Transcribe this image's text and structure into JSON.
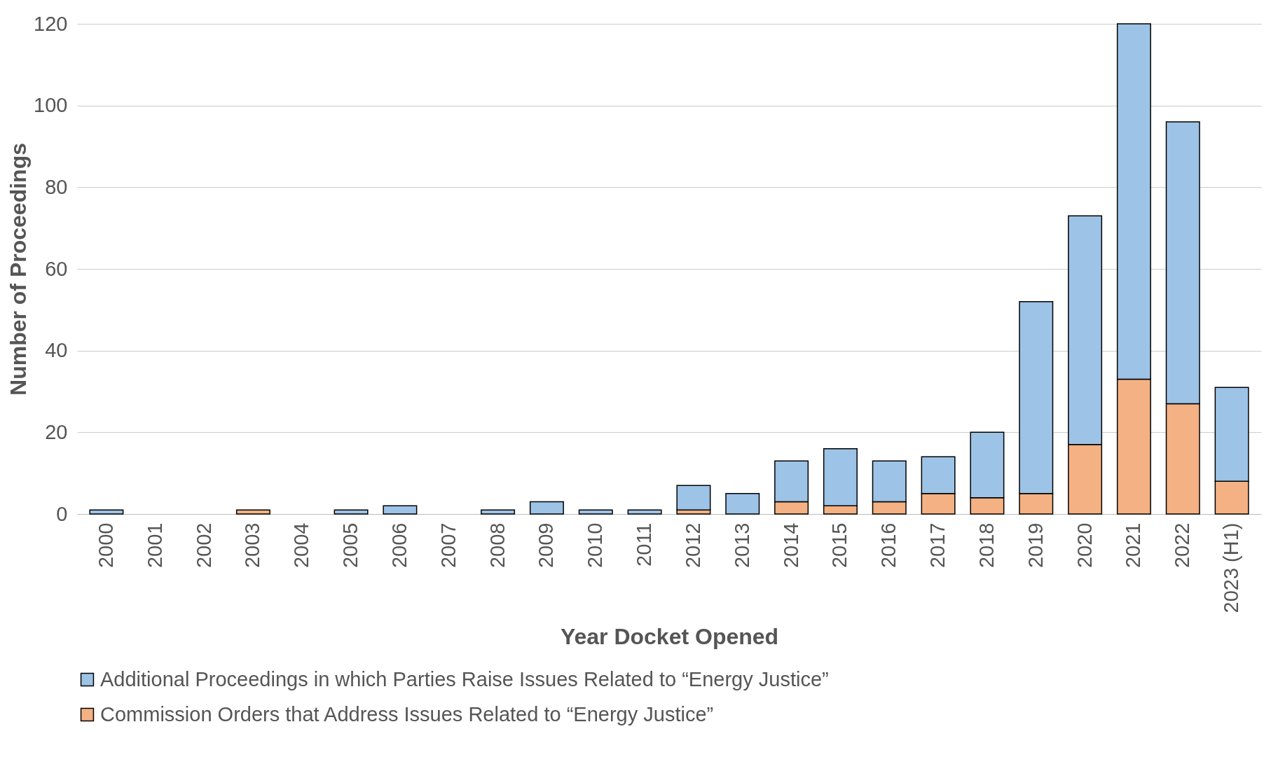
{
  "chart_data": {
    "type": "bar",
    "stacked": true,
    "xlabel": "Year Docket Opened",
    "ylabel": "Number of Proceedings",
    "categories": [
      "2000",
      "2001",
      "2002",
      "2003",
      "2004",
      "2005",
      "2006",
      "2007",
      "2008",
      "2009",
      "2010",
      "2011",
      "2012",
      "2013",
      "2014",
      "2015",
      "2016",
      "2017",
      "2018",
      "2019",
      "2020",
      "2021",
      "2022",
      "2023 (H1)"
    ],
    "series": [
      {
        "name": "Commission Orders that Address Issues Related to “Energy Justice”",
        "color": "#f4b183",
        "values": [
          0,
          0,
          0,
          1,
          0,
          0,
          0,
          0,
          0,
          0,
          0,
          0,
          1,
          0,
          3,
          2,
          3,
          5,
          4,
          5,
          17,
          33,
          27,
          8
        ]
      },
      {
        "name": "Additional Proceedings in which Parties Raise Issues Related to “Energy Justice”",
        "color": "#9dc3e6",
        "values": [
          1,
          0,
          0,
          0,
          0,
          1,
          2,
          0,
          1,
          3,
          1,
          1,
          6,
          5,
          10,
          14,
          10,
          9,
          16,
          47,
          56,
          87,
          69,
          23
        ]
      }
    ],
    "ylim": [
      0,
      120
    ],
    "yticks": [
      0,
      20,
      40,
      60,
      80,
      100,
      120
    ],
    "grid": "y",
    "legend": "bottom"
  }
}
